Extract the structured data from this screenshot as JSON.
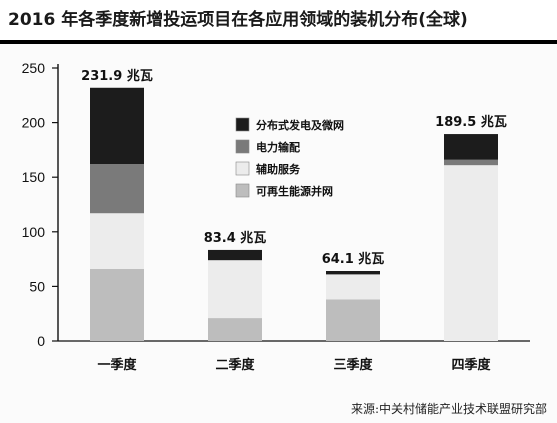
{
  "chart_data": {
    "type": "bar",
    "title": "2016 年各季度新增投运项目在各应用领域的装机分布(全球)",
    "source": "来源:中关村储能产业技术联盟研究部",
    "categories": [
      "一季度",
      "二季度",
      "三季度",
      "四季度"
    ],
    "stacked": true,
    "ylim": [
      0,
      250
    ],
    "yticks": [
      0,
      50,
      100,
      150,
      200,
      250
    ],
    "grid": false,
    "legend_position": "top-center",
    "total_labels": [
      "231.9 兆瓦",
      "83.4 兆瓦",
      "64.1 兆瓦",
      "189.5 兆瓦"
    ],
    "series": [
      {
        "name": "可再生能源并网",
        "color": "#bdbdbd",
        "values": [
          66,
          21,
          38,
          0
        ]
      },
      {
        "name": "辅助服务",
        "color": "#ececec",
        "values": [
          51,
          53,
          23,
          161
        ]
      },
      {
        "name": "电力输配",
        "color": "#7a7a7a",
        "values": [
          45,
          0,
          0,
          5
        ]
      },
      {
        "name": "分布式发电及微网",
        "color": "#1c1c1c",
        "values": [
          69.9,
          9.4,
          3.1,
          23.5
        ]
      }
    ],
    "legend_order": [
      "分布式发电及微网",
      "电力输配",
      "辅助服务",
      "可再生能源并网"
    ]
  }
}
